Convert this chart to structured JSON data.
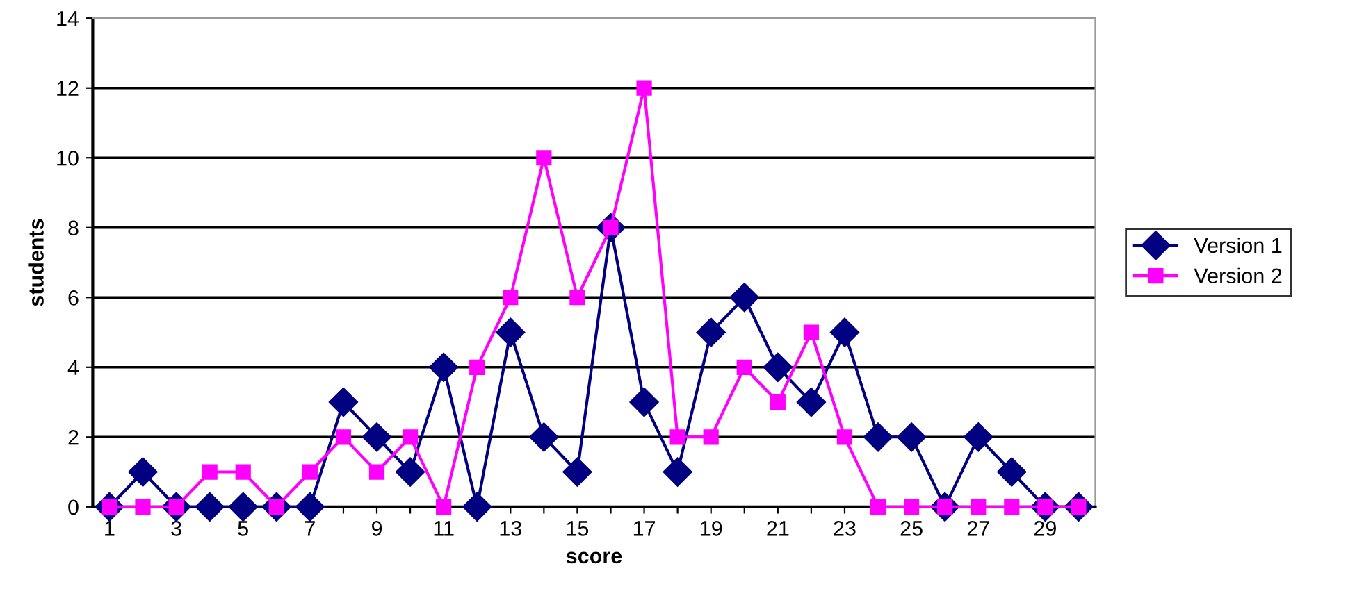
{
  "chart_data": {
    "type": "line",
    "xlabel": "score",
    "ylabel": "students",
    "categories": [
      "1",
      null,
      "3",
      null,
      "5",
      null,
      "7",
      null,
      "9",
      null,
      "11",
      null,
      "13",
      null,
      "15",
      null,
      "17",
      null,
      "19",
      null,
      "21",
      null,
      "23",
      null,
      "25",
      null,
      "27",
      null,
      "29",
      null
    ],
    "series": [
      {
        "name": "Version 1",
        "color": "#000080",
        "marker": "diamond",
        "values": [
          0,
          1,
          0,
          0,
          0,
          0,
          0,
          3,
          2,
          1,
          4,
          0,
          5,
          2,
          1,
          8,
          3,
          1,
          5,
          6,
          4,
          3,
          5,
          2,
          2,
          0,
          2,
          1,
          0,
          0
        ]
      },
      {
        "name": "Version 2",
        "color": "#ff00ff",
        "marker": "square",
        "values": [
          0,
          0,
          0,
          1,
          1,
          0,
          1,
          2,
          1,
          2,
          0,
          4,
          6,
          10,
          6,
          8,
          12,
          2,
          2,
          4,
          3,
          5,
          2,
          0,
          0,
          0,
          0,
          0,
          0,
          0
        ]
      }
    ],
    "ylim": [
      0,
      14
    ],
    "yticks": [
      0,
      2,
      4,
      6,
      8,
      10,
      12,
      14
    ],
    "grid": "y",
    "legend": "right",
    "line_style": "solid"
  }
}
